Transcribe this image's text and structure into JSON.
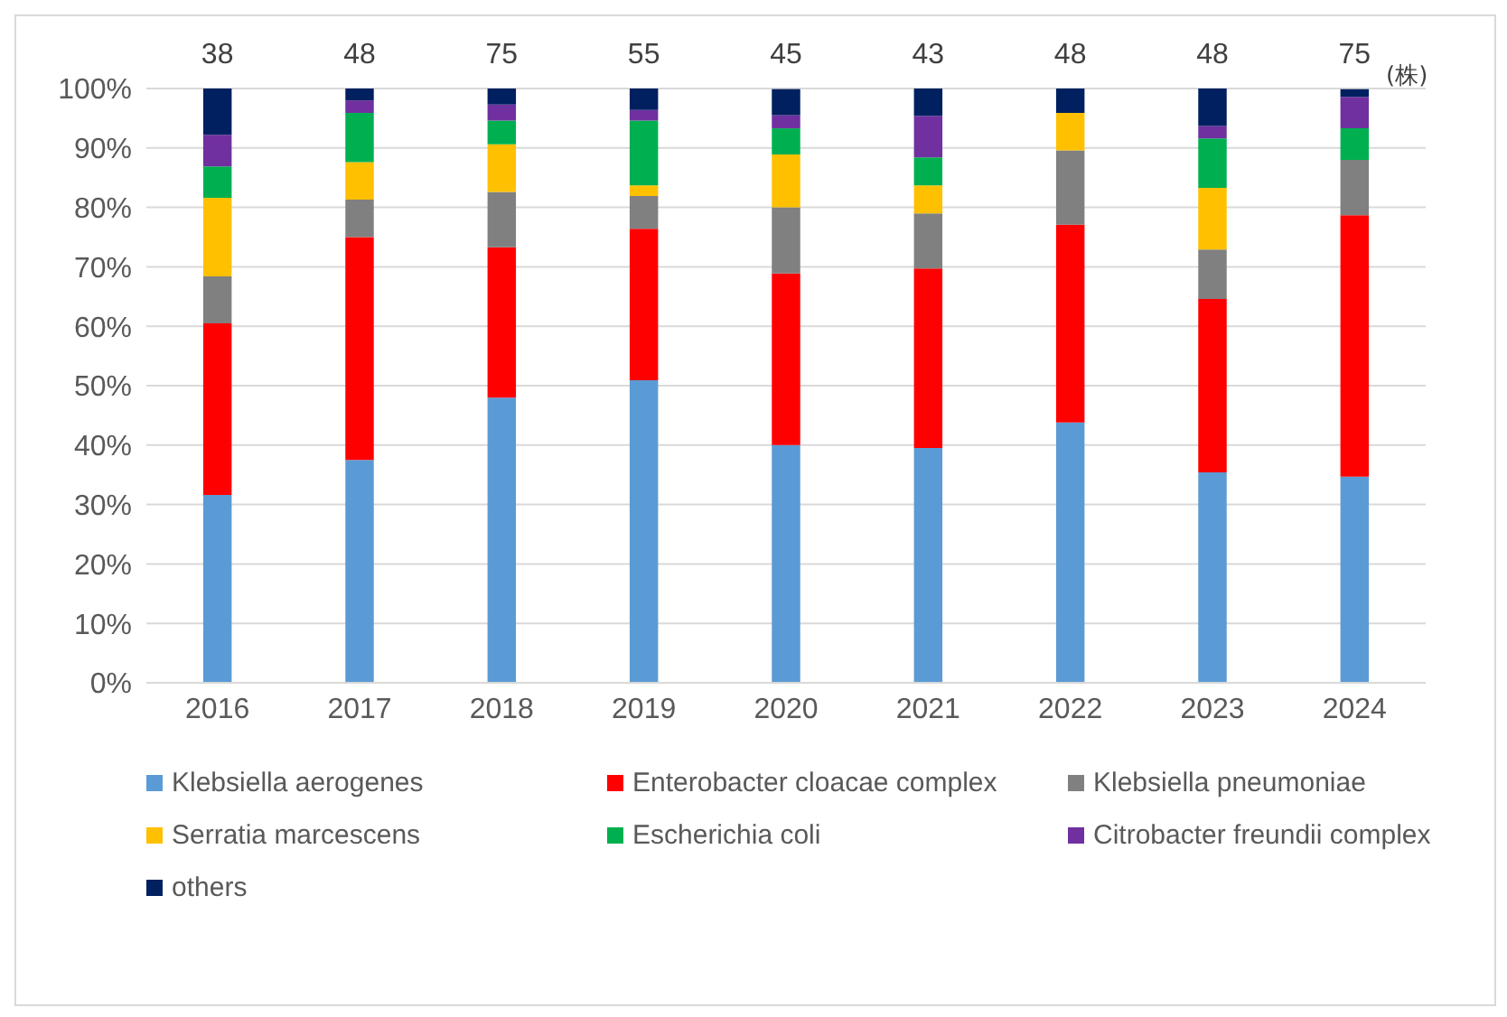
{
  "chart_data": {
    "type": "bar",
    "stacked": true,
    "categories": [
      "2016",
      "2017",
      "2018",
      "2019",
      "2020",
      "2021",
      "2022",
      "2023",
      "2024"
    ],
    "series": [
      {
        "name": "Klebsiella aerogenes",
        "color": "#5b9bd5",
        "values": [
          31.6,
          37.5,
          48.0,
          50.9,
          40.0,
          39.5,
          43.8,
          35.4,
          34.7
        ]
      },
      {
        "name": "Enterobacter cloacae complex",
        "color": "#ff0000",
        "values": [
          28.9,
          37.5,
          25.3,
          25.5,
          28.9,
          30.2,
          33.3,
          29.2,
          44.0
        ]
      },
      {
        "name": "Klebsiella pneumoniae",
        "color": "#808080",
        "values": [
          7.9,
          6.3,
          9.3,
          5.5,
          11.1,
          9.3,
          12.5,
          8.3,
          9.3
        ]
      },
      {
        "name": "Serratia marcescens",
        "color": "#ffc000",
        "values": [
          13.2,
          6.3,
          8.0,
          1.8,
          8.9,
          4.7,
          6.3,
          10.4,
          0
        ]
      },
      {
        "name": "Escherichia coli",
        "color": "#00b050",
        "values": [
          5.3,
          8.3,
          4.0,
          10.9,
          4.4,
          4.7,
          0,
          8.3,
          5.3
        ]
      },
      {
        "name": "Citrobacter freundii complex",
        "color": "#7030a0",
        "values": [
          5.3,
          2.1,
          2.7,
          1.8,
          2.2,
          7.0,
          0,
          2.1,
          5.3
        ]
      },
      {
        "name": "others",
        "color": "#002060",
        "values": [
          7.9,
          2.1,
          2.7,
          3.6,
          4.4,
          4.7,
          4.2,
          6.3,
          1.3
        ]
      }
    ],
    "annotations": [
      {
        "text": "38",
        "x": "2016",
        "y": 100
      },
      {
        "text": "48",
        "x": "2017",
        "y": 100
      },
      {
        "text": "75",
        "x": "2018",
        "y": 100
      },
      {
        "text": "55",
        "x": "2019",
        "y": 100
      },
      {
        "text": "45",
        "x": "2020",
        "y": 100
      },
      {
        "text": "43",
        "x": "2021",
        "y": 100
      },
      {
        "text": "48",
        "x": "2022",
        "y": 100
      },
      {
        "text": "48",
        "x": "2023",
        "y": 100
      },
      {
        "text": "75",
        "x": "2024",
        "y": 100
      },
      "(株)"
    ],
    "ylim": [
      0,
      100
    ],
    "yticks": [
      {
        "value": 0,
        "label": "0%"
      },
      {
        "value": 10,
        "label": "10%"
      },
      {
        "value": 20,
        "label": "20%"
      },
      {
        "value": 30,
        "label": "30%"
      },
      {
        "value": 40,
        "label": "40%"
      },
      {
        "value": 50,
        "label": "50%"
      },
      {
        "value": 60,
        "label": "60%"
      },
      {
        "value": 70,
        "label": "70%"
      },
      {
        "value": 80,
        "label": "80%"
      },
      {
        "value": 90,
        "label": "90%"
      },
      {
        "value": 100,
        "label": "100%"
      }
    ],
    "grid": "y",
    "legend": "bottom"
  }
}
